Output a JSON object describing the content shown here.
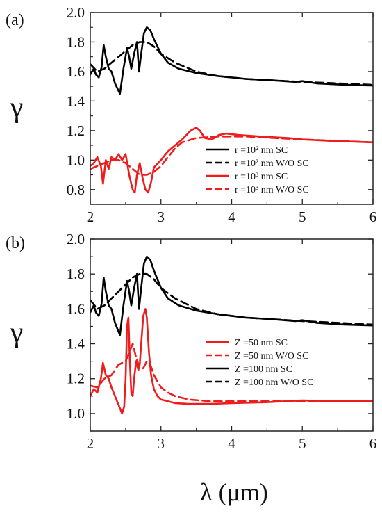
{
  "chart_data": [
    {
      "panel": "(a)",
      "type": "line",
      "xlabel": "λ (μm)",
      "ylabel": "γ",
      "xlim": [
        2,
        6
      ],
      "ylim": [
        0.7,
        2.0
      ],
      "xticks": [
        "2",
        "3",
        "4",
        "5",
        "6"
      ],
      "yticks": [
        "0.8",
        "1.0",
        "1.2",
        "1.4",
        "1.6",
        "1.8",
        "2.0"
      ],
      "ytick_values": [
        0.8,
        1.0,
        1.2,
        1.4,
        1.6,
        1.8,
        2.0
      ],
      "legend": "center-right",
      "series": [
        {
          "name": "r =10² nm SC",
          "color": "#000000",
          "dash": "solid",
          "x": [
            2.0,
            2.05,
            2.08,
            2.12,
            2.16,
            2.19,
            2.22,
            2.26,
            2.3,
            2.35,
            2.42,
            2.47,
            2.52,
            2.55,
            2.58,
            2.62,
            2.66,
            2.69,
            2.72,
            2.76,
            2.8,
            2.85,
            2.9,
            3.0,
            3.1,
            3.25,
            3.5,
            3.8,
            4.2,
            4.6,
            4.9,
            5.0,
            5.2,
            5.6,
            6.0
          ],
          "y": [
            1.58,
            1.62,
            1.58,
            1.56,
            1.63,
            1.78,
            1.7,
            1.62,
            1.6,
            1.52,
            1.45,
            1.62,
            1.76,
            1.7,
            1.62,
            1.72,
            1.8,
            1.6,
            1.72,
            1.86,
            1.9,
            1.88,
            1.82,
            1.72,
            1.66,
            1.62,
            1.59,
            1.57,
            1.55,
            1.54,
            1.53,
            1.535,
            1.52,
            1.51,
            1.505
          ]
        },
        {
          "name": "r =10² nm W/O SC",
          "color": "#000000",
          "dash": "dashed",
          "x": [
            2.0,
            2.1,
            2.2,
            2.3,
            2.4,
            2.5,
            2.6,
            2.7,
            2.8,
            2.9,
            3.0,
            3.2,
            3.5,
            3.8,
            4.2,
            4.6,
            5.0,
            5.5,
            6.0
          ],
          "y": [
            1.65,
            1.6,
            1.62,
            1.66,
            1.7,
            1.74,
            1.78,
            1.8,
            1.8,
            1.77,
            1.72,
            1.66,
            1.6,
            1.57,
            1.55,
            1.54,
            1.53,
            1.52,
            1.51
          ]
        },
        {
          "name": "r =10³ nm SC",
          "color": "#ee1c1c",
          "dash": "solid",
          "x": [
            2.0,
            2.05,
            2.1,
            2.15,
            2.18,
            2.22,
            2.26,
            2.3,
            2.35,
            2.4,
            2.45,
            2.5,
            2.55,
            2.6,
            2.63,
            2.66,
            2.7,
            2.74,
            2.78,
            2.82,
            2.86,
            2.9,
            3.0,
            3.1,
            3.2,
            3.3,
            3.42,
            3.5,
            3.55,
            3.62,
            3.72,
            3.82,
            3.92,
            4.1,
            4.4,
            4.8,
            5.0,
            5.4,
            6.0
          ],
          "y": [
            0.96,
            0.98,
            1.02,
            0.96,
            0.84,
            1.0,
            0.94,
            1.02,
            1.0,
            1.04,
            1.0,
            1.04,
            0.9,
            0.8,
            0.78,
            0.9,
            0.98,
            0.88,
            0.8,
            0.78,
            0.85,
            0.95,
            1.0,
            1.06,
            1.1,
            1.14,
            1.2,
            1.22,
            1.2,
            1.15,
            1.14,
            1.17,
            1.18,
            1.17,
            1.16,
            1.15,
            1.14,
            1.13,
            1.12
          ]
        },
        {
          "name": "r =10³ nm W/O SC",
          "color": "#ee1c1c",
          "dash": "dashed",
          "x": [
            2.0,
            2.1,
            2.2,
            2.3,
            2.4,
            2.5,
            2.6,
            2.7,
            2.8,
            2.9,
            3.0,
            3.1,
            3.2,
            3.3,
            3.5,
            3.8,
            4.2,
            4.6,
            5.0,
            5.5,
            6.0
          ],
          "y": [
            0.94,
            0.96,
            0.98,
            1.0,
            1.0,
            0.98,
            0.94,
            0.9,
            0.9,
            0.92,
            0.96,
            1.02,
            1.08,
            1.12,
            1.15,
            1.16,
            1.16,
            1.15,
            1.14,
            1.13,
            1.12
          ]
        }
      ]
    },
    {
      "panel": "(b)",
      "type": "line",
      "xlabel": "λ (μm)",
      "ylabel": "γ",
      "xlim": [
        2,
        6
      ],
      "ylim": [
        0.9,
        2.0
      ],
      "xticks": [
        "2",
        "3",
        "4",
        "5",
        "6"
      ],
      "yticks": [
        "1.0",
        "1.2",
        "1.4",
        "1.6",
        "1.8",
        "2.0"
      ],
      "ytick_values": [
        1.0,
        1.2,
        1.4,
        1.6,
        1.8,
        2.0
      ],
      "legend": "center-right",
      "series": [
        {
          "name": "Z =50 nm SC",
          "color": "#ee1c1c",
          "dash": "solid",
          "x": [
            2.0,
            2.05,
            2.1,
            2.15,
            2.18,
            2.22,
            2.26,
            2.3,
            2.35,
            2.4,
            2.45,
            2.48,
            2.5,
            2.52,
            2.54,
            2.56,
            2.58,
            2.6,
            2.62,
            2.65,
            2.68,
            2.7,
            2.72,
            2.75,
            2.78,
            2.8,
            2.83,
            2.86,
            2.9,
            2.95,
            3.0,
            3.1,
            3.2,
            3.4,
            3.7,
            4.0,
            4.5,
            5.0,
            5.5,
            6.0
          ],
          "y": [
            1.1,
            1.14,
            1.12,
            1.2,
            1.29,
            1.22,
            1.2,
            1.15,
            1.1,
            1.05,
            1.0,
            1.04,
            1.2,
            1.5,
            1.55,
            1.3,
            1.12,
            1.1,
            1.2,
            1.3,
            1.25,
            1.28,
            1.4,
            1.56,
            1.6,
            1.55,
            1.35,
            1.22,
            1.14,
            1.1,
            1.08,
            1.07,
            1.06,
            1.055,
            1.055,
            1.06,
            1.065,
            1.075,
            1.07,
            1.07
          ]
        },
        {
          "name": "Z =50 nm W/O SC",
          "color": "#ee1c1c",
          "dash": "dashed",
          "x": [
            2.0,
            2.1,
            2.2,
            2.3,
            2.4,
            2.5,
            2.55,
            2.6,
            2.65,
            2.7,
            2.75,
            2.8,
            2.85,
            2.9,
            3.0,
            3.1,
            3.2,
            3.4,
            3.7,
            4.0,
            4.5,
            5.0,
            5.5,
            6.0
          ],
          "y": [
            1.16,
            1.15,
            1.2,
            1.22,
            1.28,
            1.3,
            1.35,
            1.4,
            1.32,
            1.26,
            1.26,
            1.3,
            1.28,
            1.22,
            1.15,
            1.12,
            1.1,
            1.08,
            1.07,
            1.07,
            1.07,
            1.07,
            1.07,
            1.07
          ]
        },
        {
          "name": "Z =100 nm SC",
          "color": "#000000",
          "dash": "solid",
          "x": [
            2.0,
            2.05,
            2.08,
            2.12,
            2.16,
            2.19,
            2.22,
            2.26,
            2.3,
            2.35,
            2.42,
            2.47,
            2.52,
            2.55,
            2.58,
            2.62,
            2.66,
            2.69,
            2.72,
            2.76,
            2.8,
            2.85,
            2.9,
            3.0,
            3.1,
            3.25,
            3.5,
            3.8,
            4.2,
            4.6,
            4.9,
            5.0,
            5.2,
            5.6,
            6.0
          ],
          "y": [
            1.58,
            1.62,
            1.58,
            1.56,
            1.63,
            1.78,
            1.7,
            1.62,
            1.6,
            1.52,
            1.45,
            1.62,
            1.76,
            1.7,
            1.62,
            1.72,
            1.8,
            1.6,
            1.72,
            1.86,
            1.9,
            1.88,
            1.82,
            1.72,
            1.66,
            1.62,
            1.59,
            1.57,
            1.55,
            1.54,
            1.53,
            1.535,
            1.52,
            1.51,
            1.505
          ]
        },
        {
          "name": "Z =100 nm W/O SC",
          "color": "#000000",
          "dash": "dashed",
          "x": [
            2.0,
            2.1,
            2.2,
            2.3,
            2.4,
            2.5,
            2.6,
            2.7,
            2.8,
            2.9,
            3.0,
            3.2,
            3.5,
            3.8,
            4.2,
            4.6,
            5.0,
            5.5,
            6.0
          ],
          "y": [
            1.65,
            1.6,
            1.62,
            1.66,
            1.7,
            1.74,
            1.78,
            1.8,
            1.8,
            1.77,
            1.72,
            1.66,
            1.6,
            1.57,
            1.55,
            1.54,
            1.53,
            1.52,
            1.51
          ]
        }
      ]
    }
  ]
}
